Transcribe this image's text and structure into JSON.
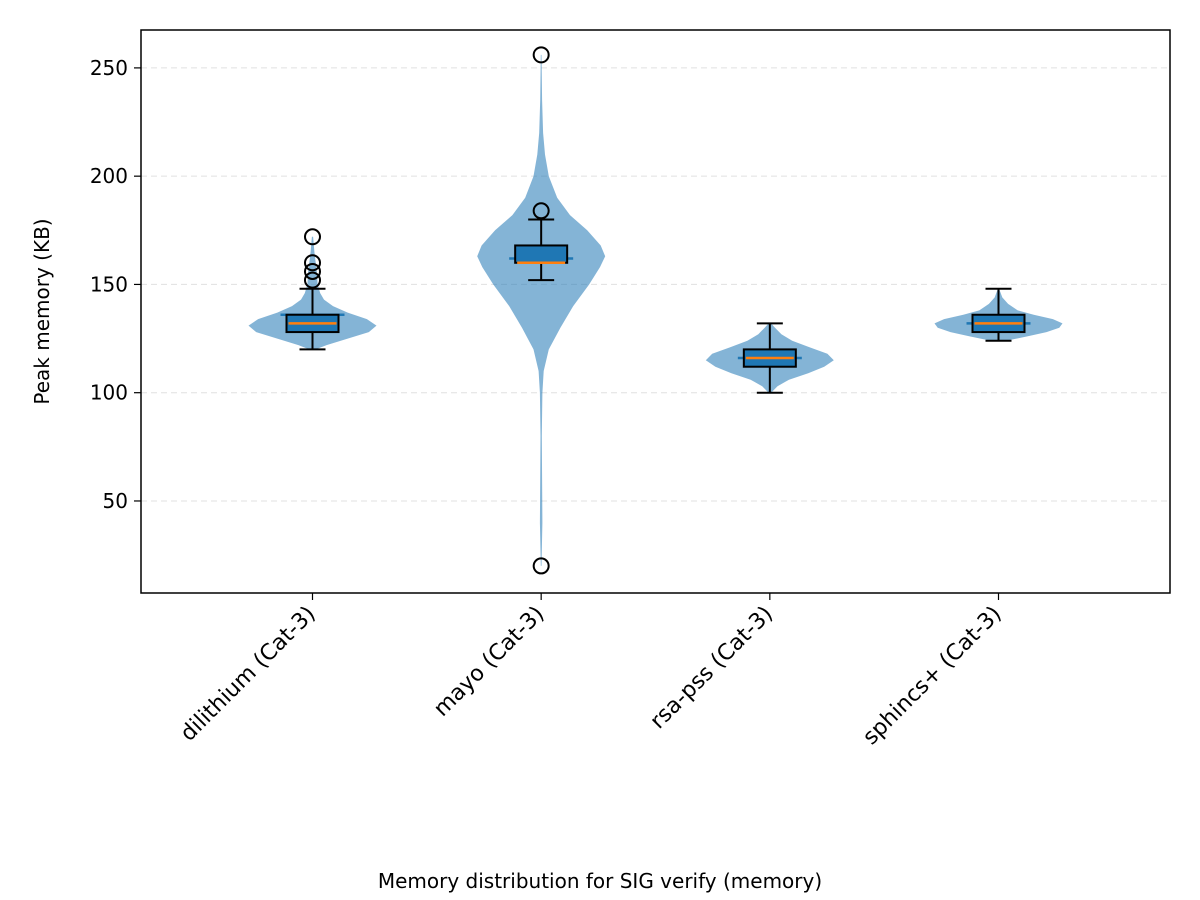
{
  "chart_data": {
    "type": "violin",
    "title": "",
    "caption": "Memory distribution for SIG verify (memory)",
    "xlabel": "",
    "ylabel": "Peak memory (KB)",
    "ylim": [
      7.5,
      267.5
    ],
    "yticks": [
      50,
      100,
      150,
      200,
      250
    ],
    "grid": "y-dashed",
    "categories": [
      "dilithium (Cat-3)",
      "mayo (Cat-3)",
      "rsa-pss (Cat-3)",
      "sphincs+ (Cat-3)"
    ],
    "series": [
      {
        "category": "dilithium (Cat-3)",
        "whisker_low": 120,
        "q1": 128,
        "median": 132,
        "mean": 136,
        "q3": 136,
        "whisker_high": 148,
        "outliers": [
          152,
          156,
          160,
          172
        ],
        "range": [
          120,
          172
        ],
        "density": [
          [
            120,
            0.05
          ],
          [
            122,
            0.22
          ],
          [
            125,
            0.55
          ],
          [
            128,
            0.88
          ],
          [
            131,
            1.0
          ],
          [
            134,
            0.85
          ],
          [
            137,
            0.55
          ],
          [
            140,
            0.32
          ],
          [
            143,
            0.18
          ],
          [
            146,
            0.12
          ],
          [
            150,
            0.08
          ],
          [
            155,
            0.07
          ],
          [
            160,
            0.05
          ],
          [
            165,
            0.03
          ],
          [
            172,
            0.01
          ]
        ]
      },
      {
        "category": "mayo (Cat-3)",
        "whisker_low": 152,
        "q1": 160,
        "median": 160,
        "mean": 162,
        "q3": 168,
        "whisker_high": 180,
        "outliers": [
          20,
          184,
          256
        ],
        "range": [
          20,
          256
        ],
        "density": [
          [
            20,
            0.005
          ],
          [
            40,
            0.02
          ],
          [
            60,
            0.015
          ],
          [
            80,
            0.01
          ],
          [
            100,
            0.02
          ],
          [
            110,
            0.04
          ],
          [
            120,
            0.12
          ],
          [
            130,
            0.3
          ],
          [
            140,
            0.5
          ],
          [
            150,
            0.75
          ],
          [
            158,
            0.92
          ],
          [
            163,
            1.0
          ],
          [
            168,
            0.93
          ],
          [
            175,
            0.72
          ],
          [
            182,
            0.45
          ],
          [
            190,
            0.25
          ],
          [
            200,
            0.12
          ],
          [
            210,
            0.06
          ],
          [
            220,
            0.03
          ],
          [
            235,
            0.015
          ],
          [
            256,
            0.005
          ]
        ]
      },
      {
        "category": "rsa-pss (Cat-3)",
        "whisker_low": 100,
        "q1": 112,
        "median": 116,
        "mean": 116,
        "q3": 120,
        "whisker_high": 132,
        "outliers": [],
        "range": [
          100,
          132
        ],
        "density": [
          [
            100,
            0.02
          ],
          [
            103,
            0.12
          ],
          [
            106,
            0.3
          ],
          [
            109,
            0.6
          ],
          [
            112,
            0.85
          ],
          [
            115,
            1.0
          ],
          [
            118,
            0.9
          ],
          [
            121,
            0.62
          ],
          [
            124,
            0.35
          ],
          [
            127,
            0.18
          ],
          [
            130,
            0.08
          ],
          [
            132,
            0.02
          ]
        ]
      },
      {
        "category": "sphincs+ (Cat-3)",
        "whisker_low": 124,
        "q1": 128,
        "median": 132,
        "mean": 132,
        "q3": 136,
        "whisker_high": 148,
        "outliers": [],
        "range": [
          124,
          148
        ],
        "density": [
          [
            124,
            0.12
          ],
          [
            126,
            0.45
          ],
          [
            128,
            0.75
          ],
          [
            130,
            0.95
          ],
          [
            132,
            1.0
          ],
          [
            134,
            0.85
          ],
          [
            136,
            0.55
          ],
          [
            138,
            0.3
          ],
          [
            141,
            0.15
          ],
          [
            144,
            0.06
          ],
          [
            148,
            0.01
          ]
        ]
      }
    ],
    "colors": {
      "violin": "#1f77b4",
      "box": "#1f77b4",
      "median": "#ff7f0e",
      "grid": "#cccccc",
      "axis": "#000000"
    }
  }
}
